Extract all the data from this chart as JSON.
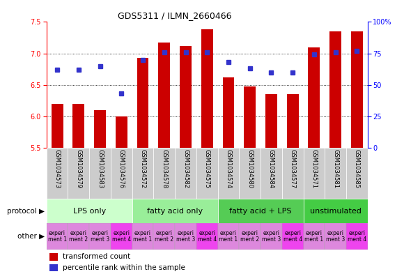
{
  "title": "GDS5311 / ILMN_2660466",
  "samples": [
    "GSM1034573",
    "GSM1034579",
    "GSM1034583",
    "GSM1034576",
    "GSM1034572",
    "GSM1034578",
    "GSM1034582",
    "GSM1034575",
    "GSM1034574",
    "GSM1034580",
    "GSM1034584",
    "GSM1034577",
    "GSM1034571",
    "GSM1034581",
    "GSM1034585"
  ],
  "transformed_count": [
    6.2,
    6.2,
    6.1,
    6.0,
    6.93,
    7.17,
    7.12,
    7.38,
    6.62,
    6.48,
    6.35,
    6.35,
    7.1,
    7.35,
    7.35
  ],
  "percentile_rank": [
    62,
    62,
    65,
    43,
    70,
    76,
    76,
    76,
    68,
    63,
    60,
    60,
    74,
    76,
    77
  ],
  "y_min": 5.5,
  "y_max": 7.5,
  "y_ticks": [
    5.5,
    6.0,
    6.5,
    7.0,
    7.5
  ],
  "y2_ticks": [
    0,
    25,
    50,
    75,
    100
  ],
  "y2_labels": [
    "0",
    "25",
    "50",
    "75",
    "100%"
  ],
  "bar_color": "#cc0000",
  "dot_color": "#3333cc",
  "protocols": [
    {
      "label": "LPS only",
      "start": 0,
      "end": 4,
      "color": "#ccffcc"
    },
    {
      "label": "fatty acid only",
      "start": 4,
      "end": 8,
      "color": "#99ee99"
    },
    {
      "label": "fatty acid + LPS",
      "start": 8,
      "end": 12,
      "color": "#55cc55"
    },
    {
      "label": "unstimulated",
      "start": 12,
      "end": 15,
      "color": "#44cc44"
    }
  ],
  "other_labels": [
    "experi\nment 1",
    "experi\nment 2",
    "experi\nment 3",
    "experi\nment 4",
    "experi\nment 1",
    "experi\nment 2",
    "experi\nment 3",
    "experi\nment 4",
    "experi\nment 1",
    "experi\nment 2",
    "experi\nment 3",
    "experi\nment 4",
    "experi\nment 1",
    "experi\nment 3",
    "experi\nment 4"
  ],
  "other_colors": [
    "#dd88dd",
    "#dd88dd",
    "#dd88dd",
    "#ee44ee",
    "#dd88dd",
    "#dd88dd",
    "#dd88dd",
    "#ee44ee",
    "#dd88dd",
    "#dd88dd",
    "#dd88dd",
    "#ee44ee",
    "#dd88dd",
    "#dd88dd",
    "#ee44ee"
  ],
  "legend_bar_label": "transformed count",
  "legend_dot_label": "percentile rank within the sample",
  "protocol_label": "protocol",
  "other_label": "other",
  "bg_color": "#ffffff",
  "sample_bg": "#cccccc",
  "left_label_color": "#333333",
  "title_fontsize": 9,
  "ytick_fontsize": 7,
  "sample_fontsize": 6,
  "proto_fontsize": 8,
  "other_fontsize": 5.5,
  "legend_fontsize": 7.5
}
